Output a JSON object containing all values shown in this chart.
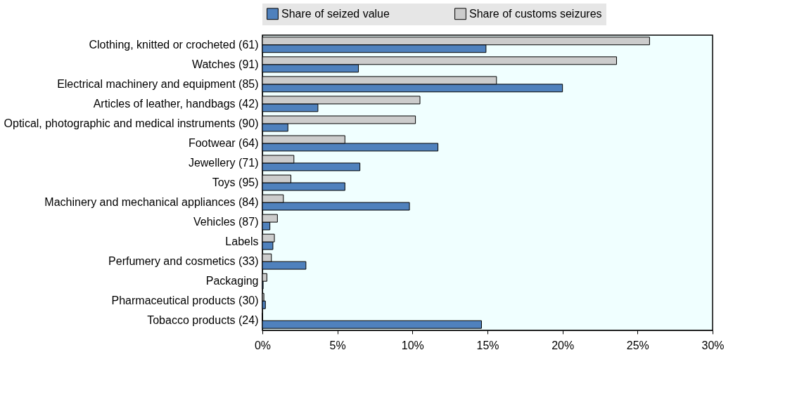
{
  "chart_data": {
    "type": "bar",
    "orientation": "horizontal",
    "categories": [
      "Clothing, knitted or crocheted (61)",
      "Watches (91)",
      "Electrical machinery and equipment (85)",
      "Articles of leather, handbags (42)",
      "Optical, photographic and medical instruments (90)",
      "Footwear (64)",
      "Jewellery (71)",
      "Toys (95)",
      "Machinery and mechanical appliances (84)",
      "Vehicles (87)",
      "Labels",
      "Perfumery and cosmetics (33)",
      "Packaging",
      "Pharmaceutical products (30)",
      "Tobacco products (24)"
    ],
    "series": [
      {
        "name": "Share of seized value",
        "color": "#4f81bd",
        "values": [
          14.9,
          6.4,
          20.0,
          3.7,
          1.7,
          11.7,
          6.5,
          5.5,
          9.8,
          0.5,
          0.7,
          2.9,
          0.05,
          0.2,
          14.6
        ]
      },
      {
        "name": "Share of customs seizures",
        "color": "#cccccc",
        "values": [
          25.8,
          23.6,
          15.6,
          10.5,
          10.2,
          5.5,
          2.1,
          1.9,
          1.4,
          1.0,
          0.8,
          0.6,
          0.3,
          0.1,
          0
        ]
      }
    ],
    "xlim": [
      0,
      30
    ],
    "xticks": [
      {
        "value": 0,
        "label": "0%"
      },
      {
        "value": 5,
        "label": "5%"
      },
      {
        "value": 10,
        "label": "10%"
      },
      {
        "value": 15,
        "label": "15%"
      },
      {
        "value": 20,
        "label": "20%"
      },
      {
        "value": 25,
        "label": "25%"
      },
      {
        "value": 30,
        "label": "30%"
      }
    ],
    "grid": false,
    "legend": "top"
  }
}
